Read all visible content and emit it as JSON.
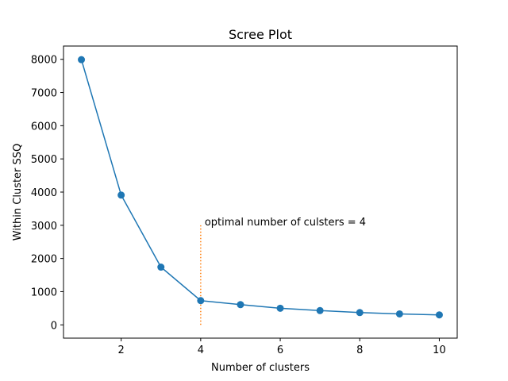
{
  "chart_data": {
    "type": "line",
    "title": "Scree Plot",
    "xlabel": "Number of clusters",
    "ylabel": "Within Cluster SSQ",
    "x": [
      1,
      2,
      3,
      4,
      5,
      6,
      7,
      8,
      9,
      10
    ],
    "series": [
      {
        "values": [
          7990,
          3910,
          1740,
          730,
          610,
          500,
          430,
          370,
          330,
          300
        ],
        "color": "#1f77b4",
        "marker": "circle"
      }
    ],
    "xlim": [
      0.55,
      10.45
    ],
    "ylim": [
      -400,
      8400
    ],
    "xticks": [
      2,
      4,
      6,
      8,
      10
    ],
    "yticks": [
      0,
      1000,
      2000,
      3000,
      4000,
      5000,
      6000,
      7000,
      8000
    ],
    "grid": false,
    "vline": {
      "x": 4,
      "y_from": 0,
      "y_to": 3000,
      "color": "#ff7f0e",
      "style": "dotted"
    },
    "annotation": {
      "text": "optimal number of culsters = 4",
      "x": 4.1,
      "y": 3000
    }
  }
}
